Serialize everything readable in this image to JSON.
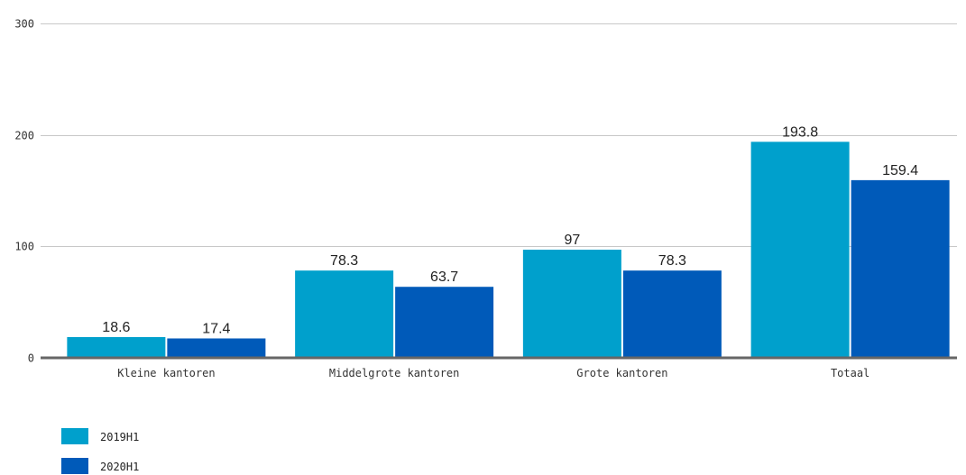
{
  "chart_data": {
    "type": "bar",
    "categories": [
      "Kleine kantoren",
      "Middelgrote kantoren",
      "Grote kantoren",
      "Totaal"
    ],
    "series": [
      {
        "name": "2019H1",
        "values": [
          18.6,
          78.3,
          97,
          193.8
        ],
        "color": "#00a0cc"
      },
      {
        "name": "2020H1",
        "values": [
          17.4,
          63.7,
          78.3,
          159.4
        ],
        "color": "#005ab9"
      }
    ],
    "yticks": [
      0,
      100,
      200,
      300
    ],
    "ylim": [
      0,
      300
    ],
    "grid": true,
    "legend_position": "bottom-left",
    "data_labels": [
      [
        "18.6",
        "78.3",
        "97",
        "193.8"
      ],
      [
        "17.4",
        "63.7",
        "78.3",
        "159.4"
      ]
    ],
    "title": "",
    "xlabel": "",
    "ylabel": ""
  }
}
